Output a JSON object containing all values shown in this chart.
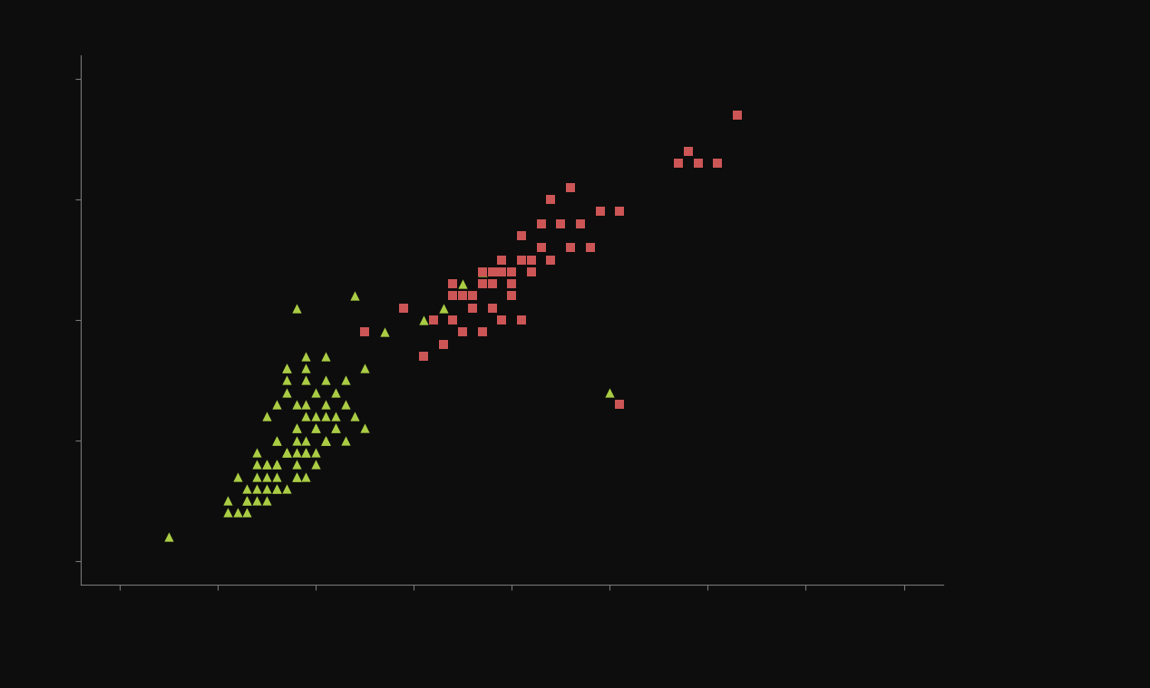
{
  "background_color": "#0d0d0d",
  "axes_bg_color": "#0d0d0d",
  "spine_color": "#777777",
  "tick_color": "#777777",
  "triangle_color": "#aacc44",
  "square_color": "#cc5555",
  "marker_size_tri": 55,
  "marker_size_sq": 55,
  "xlim": [
    3,
    47
  ],
  "ylim": [
    -1,
    21
  ],
  "xticks": [
    5,
    10,
    15,
    20,
    25,
    30,
    35,
    40,
    45
  ],
  "yticks": [
    0,
    5,
    10,
    15,
    20
  ],
  "triangles_x": [
    7.5,
    13.5,
    14.5,
    15.5,
    12.5,
    13.0,
    14.0,
    15.0,
    16.0,
    14.5,
    15.5,
    13.5,
    13.0,
    14.0,
    15.0,
    16.0,
    14.5,
    15.5,
    16.5,
    13.5,
    12.0,
    13.0,
    14.0,
    15.0,
    16.0,
    17.0,
    15.5,
    14.5,
    12.5,
    13.5,
    14.5,
    15.5,
    16.5,
    17.5,
    14.0,
    15.0,
    12.0,
    13.0,
    14.0,
    15.0,
    13.5,
    14.5,
    15.5,
    16.0,
    12.0,
    13.0,
    14.0,
    15.0,
    12.5,
    13.5,
    14.5,
    15.5,
    11.5,
    12.5,
    13.5,
    14.5,
    11.0,
    12.0,
    13.0,
    14.0,
    11.5,
    12.5,
    13.0,
    14.0,
    10.5,
    11.5,
    12.5,
    11.0,
    12.0,
    13.0,
    10.5,
    11.5,
    13.5,
    14.5,
    16.5,
    17.5,
    14.0,
    17.0,
    20.5,
    23.5,
    18.5,
    21.5,
    22.5,
    30.0
  ],
  "triangles_y": [
    1.0,
    8.0,
    8.5,
    8.5,
    6.0,
    6.5,
    6.5,
    7.0,
    7.0,
    7.5,
    7.5,
    8.0,
    5.0,
    5.5,
    5.5,
    6.0,
    6.0,
    6.5,
    6.5,
    7.0,
    4.5,
    5.0,
    5.0,
    5.5,
    5.5,
    6.0,
    6.0,
    6.5,
    4.0,
    4.5,
    4.5,
    5.0,
    5.0,
    5.5,
    5.5,
    6.0,
    3.5,
    4.0,
    4.0,
    4.5,
    4.5,
    5.0,
    5.0,
    5.5,
    3.0,
    3.5,
    3.5,
    4.0,
    4.0,
    4.5,
    4.5,
    5.0,
    2.5,
    3.0,
    3.0,
    3.5,
    3.5,
    4.0,
    4.0,
    4.5,
    2.0,
    2.5,
    3.0,
    3.5,
    2.5,
    3.0,
    3.5,
    2.0,
    2.5,
    3.0,
    2.0,
    2.5,
    7.5,
    8.0,
    7.5,
    8.0,
    10.5,
    11.0,
    10.0,
    12.0,
    9.5,
    10.5,
    11.5,
    7.0
  ],
  "squares_x": [
    36.5,
    33.5,
    34.5,
    35.5,
    34.0,
    27.5,
    28.5,
    29.5,
    30.5,
    27.0,
    28.0,
    24.0,
    25.0,
    26.0,
    27.0,
    28.0,
    29.0,
    25.5,
    26.5,
    22.0,
    23.0,
    24.0,
    25.0,
    26.0,
    23.5,
    24.5,
    25.5,
    26.5,
    21.0,
    22.0,
    23.0,
    24.0,
    25.0,
    22.5,
    23.5,
    24.5,
    21.5,
    22.5,
    23.5,
    24.5,
    25.5,
    20.5,
    21.5,
    22.5,
    17.5,
    19.5,
    22.0,
    30.5
  ],
  "squares_y": [
    18.5,
    16.5,
    16.5,
    16.5,
    17.0,
    14.0,
    14.0,
    14.5,
    14.5,
    15.0,
    15.5,
    12.0,
    12.0,
    12.5,
    12.5,
    13.0,
    13.0,
    13.5,
    14.0,
    11.0,
    11.0,
    11.5,
    11.5,
    12.0,
    12.0,
    12.5,
    12.5,
    13.0,
    10.0,
    10.0,
    10.5,
    10.5,
    11.0,
    11.0,
    11.5,
    12.0,
    9.0,
    9.5,
    9.5,
    10.0,
    10.0,
    8.5,
    9.0,
    9.5,
    9.5,
    10.5,
    11.5,
    6.5
  ]
}
